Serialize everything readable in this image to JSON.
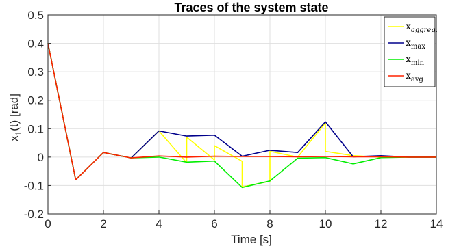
{
  "chart_data": {
    "type": "line",
    "title": "Traces of the system state",
    "xlabel": "Time [s]",
    "ylabel": "x",
    "ylabel_sub": "1",
    "ylabel_rest": "(t) [rad]",
    "xlim": [
      0,
      14
    ],
    "ylim": [
      -0.2,
      0.5
    ],
    "xticks": [
      0,
      2,
      4,
      6,
      8,
      10,
      12,
      14
    ],
    "yticks": [
      -0.2,
      -0.1,
      0,
      0.1,
      0.2,
      0.3,
      0.4,
      0.5
    ],
    "grid": true,
    "legend_position": "top-right",
    "series": [
      {
        "name": "x",
        "name_sub": "aggreg.",
        "sub_italic": true,
        "color": "#ffff00",
        "points": [
          [
            0,
            0.4
          ],
          [
            1,
            -0.08
          ],
          [
            2,
            0.016
          ],
          [
            3,
            -0.003
          ],
          [
            4,
            0.092
          ],
          [
            5,
            -0.02
          ],
          [
            5,
            0.07
          ],
          [
            6,
            -0.01
          ],
          [
            6,
            0.04
          ],
          [
            7,
            -0.015
          ],
          [
            7,
            -0.105
          ],
          [
            8,
            -0.085
          ],
          [
            8,
            0.02
          ],
          [
            9,
            0.0
          ],
          [
            10,
            0.12
          ],
          [
            10,
            0.02
          ],
          [
            11,
            0.005
          ],
          [
            12,
            0.0
          ],
          [
            13,
            0.0
          ],
          [
            14,
            0.0
          ]
        ]
      },
      {
        "name": "x",
        "name_sub": "max",
        "sub_italic": false,
        "color": "#00008b",
        "points": [
          [
            0,
            0.4
          ],
          [
            1,
            -0.08
          ],
          [
            2,
            0.016
          ],
          [
            3,
            -0.003
          ],
          [
            4,
            0.092
          ],
          [
            5,
            0.074
          ],
          [
            6,
            0.077
          ],
          [
            7,
            0.003
          ],
          [
            8,
            0.024
          ],
          [
            9,
            0.016
          ],
          [
            10,
            0.124
          ],
          [
            11,
            0.001
          ],
          [
            12,
            0.005
          ],
          [
            13,
            0.0
          ],
          [
            14,
            0.0
          ]
        ]
      },
      {
        "name": "x",
        "name_sub": "min",
        "sub_italic": false,
        "color": "#00ee00",
        "points": [
          [
            0,
            0.4
          ],
          [
            1,
            -0.08
          ],
          [
            2,
            0.016
          ],
          [
            3,
            -0.003
          ],
          [
            4,
            0.0
          ],
          [
            5,
            -0.018
          ],
          [
            6,
            -0.014
          ],
          [
            7,
            -0.107
          ],
          [
            8,
            -0.084
          ],
          [
            9,
            -0.004
          ],
          [
            10,
            -0.002
          ],
          [
            11,
            -0.024
          ],
          [
            12,
            -0.002
          ],
          [
            13,
            0.0
          ],
          [
            14,
            0.0
          ]
        ]
      },
      {
        "name": "x",
        "name_sub": "avg",
        "sub_italic": false,
        "color": "#ff2200",
        "points": [
          [
            0,
            0.4
          ],
          [
            1,
            -0.08
          ],
          [
            2,
            0.016
          ],
          [
            3,
            -0.003
          ],
          [
            4,
            0.004
          ],
          [
            5,
            0.0
          ],
          [
            6,
            0.003
          ],
          [
            7,
            0.002
          ],
          [
            8,
            0.002
          ],
          [
            9,
            0.001
          ],
          [
            10,
            0.002
          ],
          [
            11,
            0.001
          ],
          [
            12,
            0.001
          ],
          [
            13,
            0.0
          ],
          [
            14,
            0.0
          ]
        ]
      }
    ]
  }
}
